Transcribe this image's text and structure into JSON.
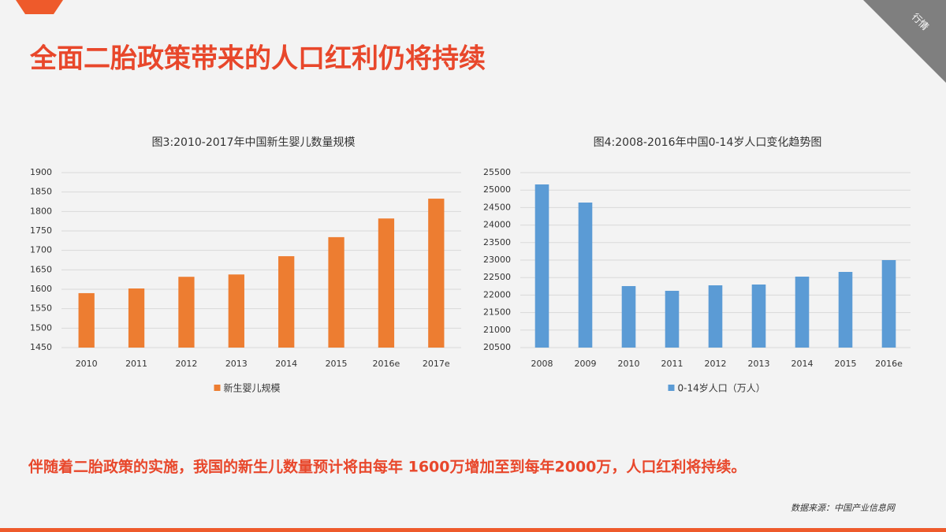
{
  "header": {
    "title": "全面二胎政策带来的人口红利仍将持续",
    "corner_tag": "行情"
  },
  "chart_data": [
    {
      "type": "bar",
      "title": "图3:2010-2017年中国新生婴儿数量规模",
      "categories": [
        "2010",
        "2011",
        "2012",
        "2013",
        "2014",
        "2015",
        "2016e",
        "2017e"
      ],
      "series": [
        {
          "name": "新生婴儿规模",
          "color": "#ed7d31",
          "values": [
            1590,
            1602,
            1632,
            1638,
            1685,
            1734,
            1782,
            1833
          ]
        }
      ],
      "ylim": [
        1450,
        1900
      ],
      "yticks": [
        1450,
        1500,
        1550,
        1600,
        1650,
        1700,
        1750,
        1800,
        1850,
        1900
      ],
      "grid": true,
      "legend": "bottom"
    },
    {
      "type": "bar",
      "title": "图4:2008-2016年中国0-14岁人口变化趋势图",
      "categories": [
        "2008",
        "2009",
        "2010",
        "2011",
        "2012",
        "2013",
        "2014",
        "2015",
        "2016e"
      ],
      "series": [
        {
          "name": "0-14岁人口（万人）",
          "color": "#5b9bd5",
          "values": [
            25162,
            24644,
            22257,
            22122,
            22279,
            22302,
            22527,
            22662,
            23000
          ]
        }
      ],
      "ylim": [
        20500,
        25500
      ],
      "yticks": [
        20500,
        21000,
        21500,
        22000,
        22500,
        23000,
        23500,
        24000,
        24500,
        25000,
        25500
      ],
      "grid": true,
      "legend": "bottom"
    }
  ],
  "footer": {
    "summary": "伴随着二胎政策的实施，我国的新生儿数量预计将由每年 1600万增加至到每年2000万，人口红利将持续。",
    "source": "数据来源：中国产业信息网"
  }
}
